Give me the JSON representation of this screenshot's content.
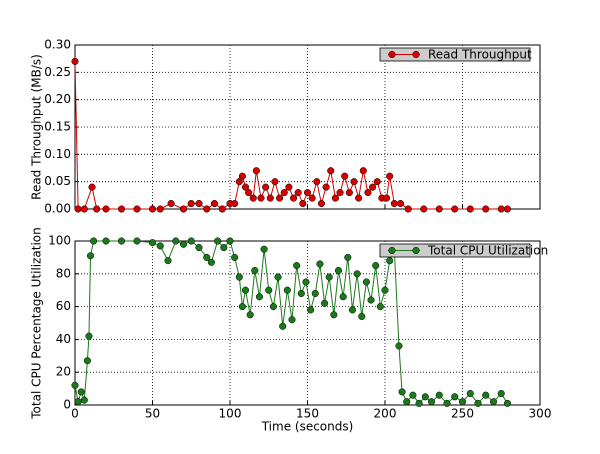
{
  "chart_data": [
    {
      "type": "line",
      "ylabel": "Read Throughput (MB/s)",
      "x": [
        0,
        2,
        6,
        11,
        14,
        20,
        30,
        40,
        50,
        55,
        62,
        70,
        75,
        80,
        85,
        90,
        95,
        100,
        103,
        106,
        108,
        110,
        112,
        115,
        117,
        120,
        123,
        126,
        129,
        132,
        135,
        138,
        141,
        144,
        147,
        150,
        153,
        156,
        159,
        162,
        165,
        168,
        171,
        174,
        177,
        180,
        183,
        186,
        189,
        192,
        195,
        198,
        201,
        203,
        206,
        210,
        215,
        225,
        235,
        245,
        255,
        265,
        275,
        279
      ],
      "series": [
        {
          "name": "Read Throughput",
          "color": "#d40000",
          "values": [
            0.27,
            0,
            0,
            0.04,
            0,
            0,
            0,
            0,
            0,
            0,
            0.01,
            0,
            0.01,
            0.01,
            0,
            0.01,
            0,
            0.01,
            0.01,
            0.05,
            0.06,
            0.04,
            0.03,
            0.02,
            0.07,
            0.02,
            0.04,
            0.02,
            0.05,
            0.02,
            0.03,
            0.04,
            0.02,
            0.03,
            0.01,
            0.03,
            0.02,
            0.05,
            0.01,
            0.04,
            0.07,
            0.02,
            0.03,
            0.06,
            0.03,
            0.05,
            0.02,
            0.07,
            0.03,
            0.04,
            0.05,
            0.02,
            0.02,
            0.06,
            0.01,
            0.01,
            0,
            0,
            0,
            0,
            0,
            0,
            0,
            0
          ]
        }
      ],
      "xlim": [
        0,
        300
      ],
      "xticks": [
        0,
        50,
        100,
        150,
        200,
        250,
        300
      ],
      "xticklabels": false,
      "ylim": [
        0,
        0.3
      ],
      "yticks": [
        {
          "value": 0,
          "label": "0.00"
        },
        {
          "value": 0.05,
          "label": "0.05"
        },
        {
          "value": 0.1,
          "label": "0.10"
        },
        {
          "value": 0.15,
          "label": "0.15"
        },
        {
          "value": 0.2,
          "label": "0.20"
        },
        {
          "value": 0.25,
          "label": "0.25"
        },
        {
          "value": 0.3,
          "label": "0.30"
        }
      ],
      "grid": true,
      "legend": "upper right"
    },
    {
      "type": "line",
      "ylabel": "Total CPU Percentage Utilization",
      "xlabel": "Time (seconds)",
      "x": [
        0,
        2,
        4,
        6,
        8,
        9,
        10,
        12,
        20,
        30,
        40,
        50,
        55,
        60,
        65,
        70,
        75,
        80,
        85,
        88,
        92,
        96,
        100,
        103,
        106,
        108,
        110,
        113,
        116,
        119,
        122,
        125,
        128,
        131,
        134,
        137,
        140,
        143,
        146,
        149,
        152,
        155,
        158,
        161,
        164,
        167,
        170,
        173,
        176,
        179,
        182,
        185,
        188,
        191,
        194,
        197,
        200,
        203,
        206,
        209,
        211,
        214,
        218,
        222,
        226,
        230,
        235,
        240,
        245,
        250,
        255,
        260,
        265,
        270,
        275,
        279
      ],
      "series": [
        {
          "name": "Total CPU Utilization",
          "color": "#1a7a1a",
          "values": [
            12,
            2,
            8,
            3,
            27,
            42,
            91,
            100,
            100,
            100,
            100,
            99,
            97,
            88,
            100,
            98,
            100,
            96,
            90,
            87,
            100,
            96,
            100,
            90,
            78,
            60,
            70,
            55,
            82,
            66,
            95,
            70,
            60,
            78,
            48,
            70,
            52,
            85,
            68,
            75,
            58,
            68,
            86,
            62,
            78,
            55,
            82,
            66,
            90,
            58,
            80,
            54,
            75,
            64,
            85,
            60,
            70,
            88,
            95,
            36,
            8,
            2,
            6,
            1,
            5,
            2,
            6,
            1,
            5,
            2,
            7,
            1,
            6,
            2,
            7,
            1
          ]
        }
      ],
      "xlim": [
        0,
        300
      ],
      "xticks": [
        0,
        50,
        100,
        150,
        200,
        250,
        300
      ],
      "xticklabels": true,
      "ylim": [
        0,
        100
      ],
      "yticks": [
        0,
        20,
        40,
        60,
        80,
        100
      ],
      "grid": true,
      "legend": "upper right"
    }
  ]
}
